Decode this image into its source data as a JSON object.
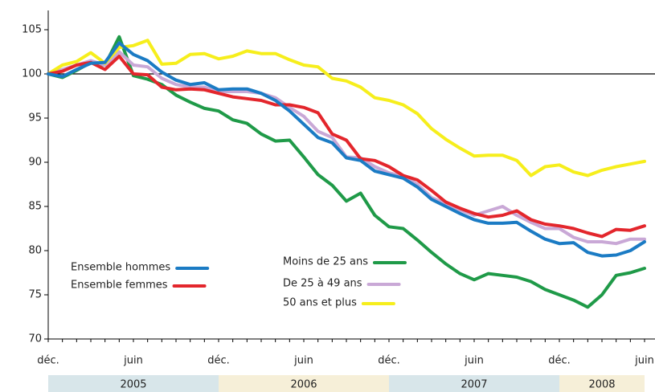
{
  "chart_data": {
    "type": "line",
    "categories": [
      "déc.",
      null,
      null,
      null,
      null,
      null,
      "juin",
      null,
      null,
      null,
      null,
      null,
      "déc.",
      null,
      null,
      null,
      null,
      null,
      "juin",
      null,
      null,
      null,
      null,
      null,
      "déc.",
      null,
      null,
      null,
      null,
      null,
      "juin",
      null,
      null,
      null,
      null,
      null,
      "déc.",
      null,
      null,
      null,
      null,
      null,
      "juin"
    ],
    "years": [
      "2005",
      "2006",
      "2007",
      "2008"
    ],
    "ylim": [
      70,
      107
    ],
    "yticks": [
      70,
      75,
      80,
      85,
      90,
      95,
      100,
      105
    ],
    "reference_line": 100,
    "series": [
      {
        "name": "Ensemble hommes",
        "color": "#1b7bc4",
        "values": [
          100,
          99.7,
          100.5,
          101.2,
          101.3,
          103.5,
          102.2,
          101.5,
          100.2,
          99.3,
          98.8,
          99,
          98.2,
          98.3,
          98.3,
          97.8,
          97,
          95.8,
          94.3,
          92.8,
          92.2,
          90.5,
          90.2,
          89,
          88.6,
          88.2,
          87.2,
          85.8,
          85,
          84.2,
          83.5,
          83.1,
          83.1,
          83.2,
          82.2,
          81.3,
          80.8,
          80.9,
          79.8,
          79.4,
          79.5,
          80,
          81
        ]
      },
      {
        "name": "Ensemble femmes",
        "color": "#e3262c",
        "values": [
          100,
          100.3,
          101,
          101.3,
          100.5,
          102,
          100,
          99.9,
          98.5,
          98.2,
          98.3,
          98.2,
          97.8,
          97.4,
          97.2,
          97,
          96.5,
          96.5,
          96.2,
          95.6,
          93.2,
          92.5,
          90.4,
          90.2,
          89.5,
          88.5,
          88,
          86.8,
          85.5,
          84.8,
          84.2,
          83.8,
          84,
          84.5,
          83.5,
          83,
          82.8,
          82.5,
          82,
          81.6,
          82.4,
          82.3,
          82.8
        ]
      },
      {
        "name": "Moins de 25 ans",
        "color": "#1f9a48",
        "values": [
          100,
          99.6,
          100.4,
          101.3,
          101,
          104.2,
          99.8,
          99.4,
          98.8,
          97.6,
          96.8,
          96.1,
          95.8,
          94.8,
          94.4,
          93.2,
          92.4,
          92.5,
          90.6,
          88.6,
          87.4,
          85.6,
          86.5,
          84,
          82.7,
          82.5,
          81.2,
          79.8,
          78.5,
          77.4,
          76.7,
          77.4,
          77.2,
          77,
          76.5,
          75.6,
          75,
          74.4,
          73.6,
          75,
          77.2,
          77.5,
          78
        ]
      },
      {
        "name": "De 25 à 49 ans",
        "color": "#c9a8d6",
        "values": [
          100,
          100.5,
          101,
          101.5,
          101,
          102.5,
          101,
          100.8,
          99.5,
          98.8,
          98.5,
          98.5,
          98,
          98,
          98,
          97.8,
          97.3,
          96.2,
          95.2,
          93.5,
          92.8,
          90.6,
          90.5,
          89.5,
          88.8,
          88.4,
          87.5,
          86,
          85.3,
          84.6,
          84,
          84.5,
          85,
          84,
          83.2,
          82.5,
          82.5,
          81.5,
          81,
          81,
          80.8,
          81.3,
          81.3
        ]
      },
      {
        "name": "50 ans et plus",
        "color": "#f6ee1c",
        "values": [
          100,
          101,
          101.4,
          102.4,
          101.2,
          103,
          103.2,
          103.8,
          101.1,
          101.2,
          102.2,
          102.3,
          101.7,
          102,
          102.6,
          102.3,
          102.3,
          101.6,
          101,
          100.8,
          99.5,
          99.2,
          98.5,
          97.3,
          97,
          96.5,
          95.5,
          93.8,
          92.6,
          91.6,
          90.7,
          90.8,
          90.8,
          90.2,
          88.5,
          89.5,
          89.7,
          88.9,
          88.5,
          89.1,
          89.5,
          89.8,
          90.1
        ]
      }
    ]
  }
}
